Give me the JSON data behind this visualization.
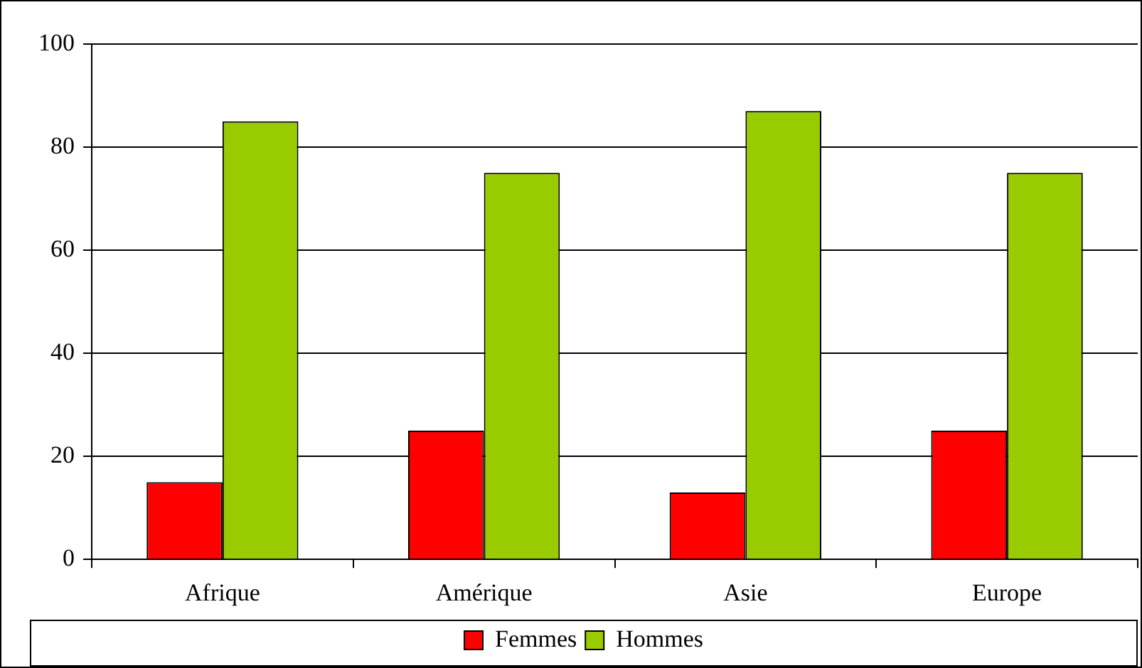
{
  "chart_data": {
    "type": "bar",
    "categories": [
      "Afrique",
      "Amérique",
      "Asie",
      "Europe"
    ],
    "series": [
      {
        "name": "Femmes",
        "color": "#ff0000",
        "values": [
          15,
          25,
          13,
          25
        ]
      },
      {
        "name": "Hommes",
        "color": "#99cc00",
        "values": [
          85,
          75,
          87,
          75
        ]
      }
    ],
    "ylim": [
      0,
      100
    ],
    "yticks": [
      0,
      20,
      40,
      60,
      80,
      100
    ],
    "grid": "y",
    "legend": "bottom"
  }
}
